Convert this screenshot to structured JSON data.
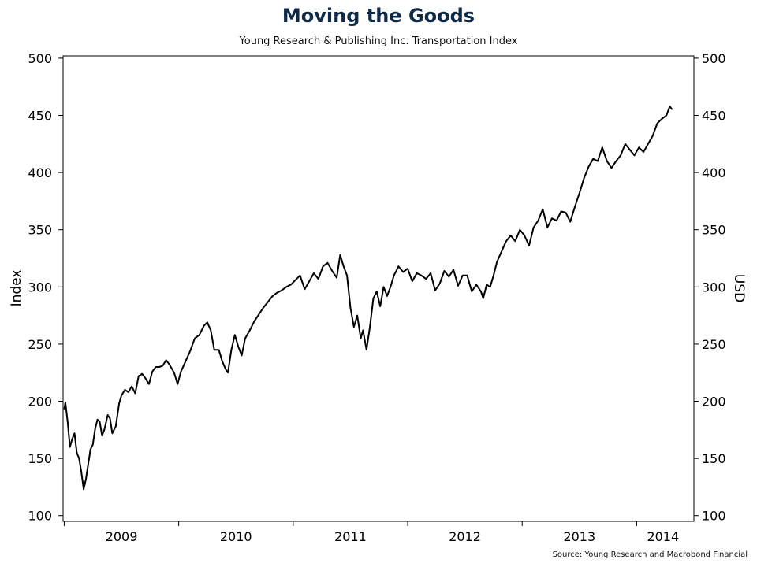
{
  "title": "Moving the Goods",
  "subtitle": "Young Research & Publishing Inc. Transportation Index",
  "source": "Source: Young Research and Macrobond Financial",
  "chart_data": {
    "type": "line",
    "ylabel_left": "Index",
    "ylabel_right": "USD",
    "ylim": [
      95,
      502
    ],
    "yticks": [
      100,
      150,
      200,
      250,
      300,
      350,
      400,
      450,
      500
    ],
    "xlim": [
      2008.99,
      2014.5
    ],
    "year_labels": [
      {
        "label": "2009",
        "x": 2009.5
      },
      {
        "label": "2010",
        "x": 2010.5
      },
      {
        "label": "2011",
        "x": 2011.5
      },
      {
        "label": "2012",
        "x": 2012.5
      },
      {
        "label": "2013",
        "x": 2013.5
      },
      {
        "label": "2014",
        "x": 2014.23
      }
    ],
    "year_ticks": [
      2009,
      2010,
      2011,
      2012,
      2013,
      2014
    ],
    "series": [
      {
        "color": "#000000",
        "points": [
          [
            2009.0,
            193
          ],
          [
            2009.01,
            199
          ],
          [
            2009.03,
            182
          ],
          [
            2009.05,
            160
          ],
          [
            2009.07,
            167
          ],
          [
            2009.09,
            172
          ],
          [
            2009.11,
            155
          ],
          [
            2009.13,
            150
          ],
          [
            2009.15,
            138
          ],
          [
            2009.17,
            123
          ],
          [
            2009.19,
            132
          ],
          [
            2009.21,
            145
          ],
          [
            2009.23,
            158
          ],
          [
            2009.25,
            162
          ],
          [
            2009.27,
            176
          ],
          [
            2009.29,
            184
          ],
          [
            2009.31,
            182
          ],
          [
            2009.33,
            170
          ],
          [
            2009.35,
            175
          ],
          [
            2009.38,
            188
          ],
          [
            2009.4,
            185
          ],
          [
            2009.42,
            172
          ],
          [
            2009.45,
            178
          ],
          [
            2009.48,
            198
          ],
          [
            2009.5,
            205
          ],
          [
            2009.53,
            210
          ],
          [
            2009.56,
            208
          ],
          [
            2009.59,
            213
          ],
          [
            2009.62,
            207
          ],
          [
            2009.65,
            222
          ],
          [
            2009.68,
            224
          ],
          [
            2009.71,
            220
          ],
          [
            2009.74,
            215
          ],
          [
            2009.77,
            226
          ],
          [
            2009.8,
            230
          ],
          [
            2009.83,
            230
          ],
          [
            2009.86,
            231
          ],
          [
            2009.89,
            236
          ],
          [
            2009.92,
            232
          ],
          [
            2009.96,
            225
          ],
          [
            2009.99,
            215
          ],
          [
            2010.02,
            226
          ],
          [
            2010.06,
            235
          ],
          [
            2010.1,
            244
          ],
          [
            2010.14,
            255
          ],
          [
            2010.18,
            258
          ],
          [
            2010.22,
            266
          ],
          [
            2010.25,
            269
          ],
          [
            2010.28,
            262
          ],
          [
            2010.31,
            245
          ],
          [
            2010.35,
            245
          ],
          [
            2010.38,
            235
          ],
          [
            2010.41,
            228
          ],
          [
            2010.43,
            225
          ],
          [
            2010.46,
            245
          ],
          [
            2010.49,
            258
          ],
          [
            2010.52,
            248
          ],
          [
            2010.55,
            240
          ],
          [
            2010.58,
            255
          ],
          [
            2010.62,
            262
          ],
          [
            2010.66,
            270
          ],
          [
            2010.7,
            276
          ],
          [
            2010.74,
            282
          ],
          [
            2010.78,
            287
          ],
          [
            2010.82,
            292
          ],
          [
            2010.86,
            295
          ],
          [
            2010.9,
            297
          ],
          [
            2010.94,
            300
          ],
          [
            2010.98,
            302
          ],
          [
            2011.02,
            306
          ],
          [
            2011.06,
            310
          ],
          [
            2011.1,
            298
          ],
          [
            2011.14,
            305
          ],
          [
            2011.18,
            312
          ],
          [
            2011.22,
            307
          ],
          [
            2011.26,
            318
          ],
          [
            2011.3,
            321
          ],
          [
            2011.34,
            314
          ],
          [
            2011.38,
            308
          ],
          [
            2011.41,
            328
          ],
          [
            2011.44,
            318
          ],
          [
            2011.47,
            310
          ],
          [
            2011.5,
            282
          ],
          [
            2011.53,
            265
          ],
          [
            2011.56,
            275
          ],
          [
            2011.59,
            255
          ],
          [
            2011.61,
            262
          ],
          [
            2011.64,
            245
          ],
          [
            2011.67,
            265
          ],
          [
            2011.7,
            290
          ],
          [
            2011.73,
            296
          ],
          [
            2011.76,
            283
          ],
          [
            2011.79,
            300
          ],
          [
            2011.82,
            292
          ],
          [
            2011.85,
            300
          ],
          [
            2011.88,
            310
          ],
          [
            2011.92,
            318
          ],
          [
            2011.96,
            313
          ],
          [
            2012.0,
            316
          ],
          [
            2012.04,
            305
          ],
          [
            2012.08,
            312
          ],
          [
            2012.12,
            310
          ],
          [
            2012.16,
            307
          ],
          [
            2012.2,
            312
          ],
          [
            2012.24,
            297
          ],
          [
            2012.28,
            303
          ],
          [
            2012.32,
            314
          ],
          [
            2012.36,
            309
          ],
          [
            2012.4,
            315
          ],
          [
            2012.44,
            301
          ],
          [
            2012.48,
            310
          ],
          [
            2012.52,
            310
          ],
          [
            2012.56,
            296
          ],
          [
            2012.6,
            302
          ],
          [
            2012.64,
            296
          ],
          [
            2012.66,
            290
          ],
          [
            2012.69,
            302
          ],
          [
            2012.72,
            300
          ],
          [
            2012.75,
            310
          ],
          [
            2012.78,
            322
          ],
          [
            2012.82,
            331
          ],
          [
            2012.86,
            340
          ],
          [
            2012.9,
            345
          ],
          [
            2012.94,
            340
          ],
          [
            2012.98,
            350
          ],
          [
            2013.02,
            345
          ],
          [
            2013.06,
            336
          ],
          [
            2013.1,
            352
          ],
          [
            2013.14,
            358
          ],
          [
            2013.18,
            368
          ],
          [
            2013.22,
            352
          ],
          [
            2013.26,
            360
          ],
          [
            2013.3,
            358
          ],
          [
            2013.34,
            366
          ],
          [
            2013.38,
            365
          ],
          [
            2013.42,
            357
          ],
          [
            2013.46,
            370
          ],
          [
            2013.5,
            382
          ],
          [
            2013.54,
            395
          ],
          [
            2013.58,
            405
          ],
          [
            2013.62,
            412
          ],
          [
            2013.66,
            410
          ],
          [
            2013.7,
            422
          ],
          [
            2013.74,
            410
          ],
          [
            2013.78,
            404
          ],
          [
            2013.82,
            410
          ],
          [
            2013.86,
            415
          ],
          [
            2013.9,
            425
          ],
          [
            2013.94,
            420
          ],
          [
            2013.98,
            415
          ],
          [
            2014.02,
            422
          ],
          [
            2014.06,
            418
          ],
          [
            2014.1,
            425
          ],
          [
            2014.14,
            432
          ],
          [
            2014.18,
            443
          ],
          [
            2014.22,
            447
          ],
          [
            2014.26,
            450
          ],
          [
            2014.29,
            458
          ],
          [
            2014.31,
            455
          ]
        ]
      }
    ]
  }
}
